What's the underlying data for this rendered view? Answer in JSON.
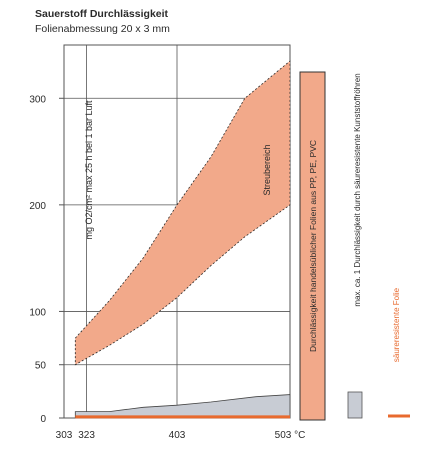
{
  "header": {
    "title": "Sauerstoff Durchlässigkeit",
    "subtitle": "Folienabmessung 20 x 3 mm"
  },
  "chart_data": {
    "type": "area",
    "x_ticks": [
      303,
      323,
      403,
      503
    ],
    "x_tick_labels": [
      "303",
      "323",
      "403",
      "503 °C"
    ],
    "y_ticks": [
      0,
      50,
      100,
      200,
      300
    ],
    "y_tick_labels": [
      "0",
      "50",
      "100",
      "200",
      "300"
    ],
    "xlim": [
      303,
      503
    ],
    "ylim": [
      0,
      350
    ],
    "grid": true,
    "annotations": {
      "rotated_left": "mg O2/cm² max 25 h bei 1 bar Luft",
      "band_label": "Streubereich",
      "box_label": "Durchlässigkeit handelsüblicher Folien aus PP, PE, PVC",
      "legend_grey": "max. ca. 1 Durchlässigkeit durch säureresistente Kunststoffröhren",
      "legend_orange": "säureresistente Folie"
    },
    "series": [
      {
        "name": "Streubereich",
        "type": "band",
        "color": "#f2a98a",
        "x": [
          313,
          343,
          373,
          403,
          433,
          463,
          503
        ],
        "lower": [
          50,
          68,
          88,
          113,
          143,
          170,
          200
        ],
        "upper": [
          75,
          110,
          150,
          200,
          245,
          300,
          335
        ]
      },
      {
        "name": "max. ca. 1 Durchlässigkeit",
        "type": "area",
        "color": "#c8ccd4",
        "x": [
          313,
          343,
          373,
          403,
          433,
          473,
          503
        ],
        "y": [
          6,
          6,
          10,
          12,
          15,
          20,
          22
        ]
      },
      {
        "name": "säureresistente Folie",
        "type": "line",
        "color": "#e86a2e",
        "x": [
          313,
          503
        ],
        "y": [
          1,
          1
        ]
      }
    ]
  },
  "colors": {
    "band": "#f2a98a",
    "grey": "#c8ccd4",
    "orange": "#e86a2e",
    "grid": "#555555",
    "text": "#2b2b2b"
  }
}
